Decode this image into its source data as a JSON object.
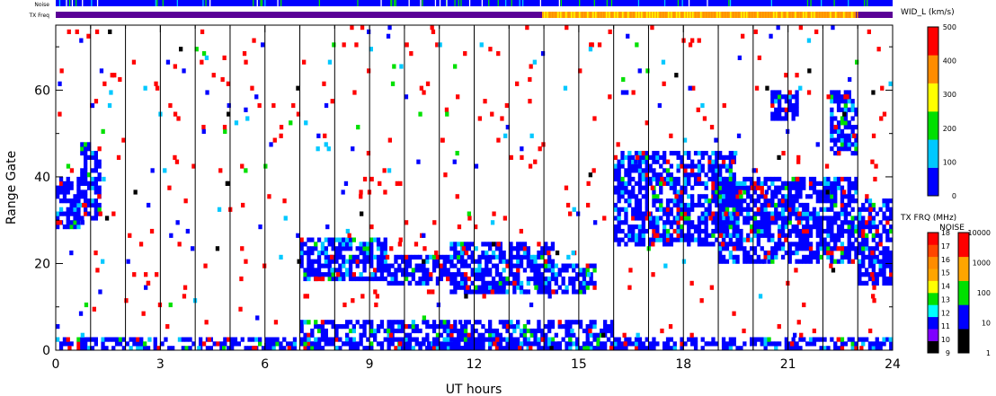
{
  "chart_data": {
    "type": "heatmap",
    "title": "",
    "xlabel": "UT hours",
    "ylabel": "Range Gate",
    "xlim": [
      0,
      24
    ],
    "ylim": [
      0,
      75
    ],
    "x_ticks": [
      "0",
      "3",
      "6",
      "9",
      "12",
      "15",
      "18",
      "21",
      "24"
    ],
    "y_ticks": [
      "0",
      "20",
      "40",
      "60"
    ],
    "vertical_lines_hours": [
      1,
      2,
      3,
      4,
      5,
      6,
      7,
      8,
      9,
      10,
      11,
      12,
      13,
      14,
      15,
      16,
      17,
      18,
      19,
      20,
      21,
      22,
      23
    ],
    "top_strips": {
      "noise_label": "Noise",
      "txfreq_label": "TX Freq",
      "txfreq_change_hour": 14.0,
      "txfreq_revert_hour": 23.0
    },
    "colorbars": [
      {
        "name": "WID_L (km/s)",
        "ticks": [
          "0",
          "100",
          "200",
          "300",
          "400",
          "500"
        ],
        "range": [
          0,
          500
        ],
        "colors": [
          "#0000ff",
          "#00c8ff",
          "#00e000",
          "#ffff00",
          "#ff8c00",
          "#ff0000"
        ]
      },
      {
        "name": "TX FRQ (MHz)",
        "ticks": [
          "9",
          "10",
          "11",
          "12",
          "13",
          "14",
          "15",
          "16",
          "17",
          "18"
        ],
        "colors": [
          "#000000",
          "#7f00ff",
          "#0000ff",
          "#00ffff",
          "#00e000",
          "#ffff00",
          "#ffa500",
          "#ff8c00",
          "#ff4500",
          "#ff0000"
        ]
      },
      {
        "name": "NOISE",
        "ticks": [
          "1",
          "10",
          "100",
          "1000",
          "10000"
        ],
        "colors": [
          "#000000",
          "#0000ff",
          "#00e000",
          "#ffa500",
          "#ff0000"
        ]
      }
    ],
    "scatter_regions": [
      {
        "t0": 0.0,
        "t1": 0.7,
        "g0": 28,
        "g1": 40,
        "dominant": "blue"
      },
      {
        "t0": 0.7,
        "t1": 1.3,
        "g0": 30,
        "g1": 48,
        "dominant": "blue"
      },
      {
        "t0": 7.0,
        "t1": 9.5,
        "g0": 16,
        "g1": 26,
        "dominant": "blue"
      },
      {
        "t0": 9.5,
        "t1": 11.3,
        "g0": 15,
        "g1": 22,
        "dominant": "blue"
      },
      {
        "t0": 11.3,
        "t1": 14.3,
        "g0": 13,
        "g1": 25,
        "dominant": "blue"
      },
      {
        "t0": 14.3,
        "t1": 15.5,
        "g0": 13,
        "g1": 20,
        "dominant": "blue"
      },
      {
        "t0": 16.0,
        "t1": 19.5,
        "g0": 24,
        "g1": 46,
        "dominant": "blue"
      },
      {
        "t0": 19.0,
        "t1": 23.0,
        "g0": 20,
        "g1": 40,
        "dominant": "blue"
      },
      {
        "t0": 20.5,
        "t1": 21.3,
        "g0": 53,
        "g1": 60,
        "dominant": "blue"
      },
      {
        "t0": 22.2,
        "t1": 23.0,
        "g0": 45,
        "g1": 60,
        "dominant": "blue"
      },
      {
        "t0": 23.0,
        "t1": 24.0,
        "g0": 15,
        "g1": 35,
        "dominant": "blue"
      },
      {
        "t0": 7.0,
        "t1": 16.0,
        "g0": 0,
        "g1": 7,
        "dominant": "blue"
      },
      {
        "t0": 0.0,
        "t1": 24.0,
        "g0": 0,
        "g1": 3,
        "dominant": "blue"
      }
    ]
  }
}
